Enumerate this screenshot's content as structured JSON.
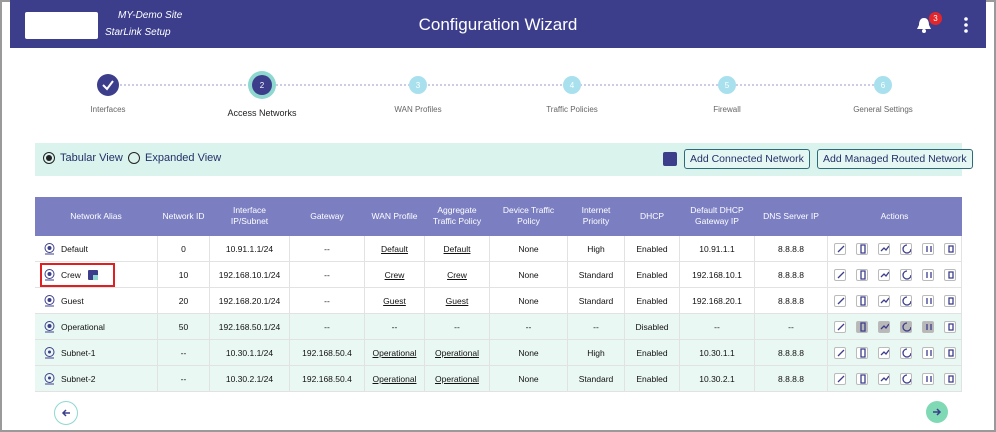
{
  "header": {
    "site_name": "MY-Demo Site",
    "site_subtitle": "StarLink Setup",
    "title": "Configuration Wizard",
    "notification_count": 3
  },
  "steps": [
    {
      "label": "Interfaces",
      "state": "done"
    },
    {
      "number": 2,
      "label": "Access Networks",
      "state": "active"
    },
    {
      "number": 3,
      "label": "WAN Profiles",
      "state": "todo"
    },
    {
      "number": 4,
      "label": "Traffic Policies",
      "state": "todo"
    },
    {
      "number": 5,
      "label": "Firewall",
      "state": "todo"
    },
    {
      "number": 6,
      "label": "General Settings",
      "state": "todo"
    }
  ],
  "toolbar": {
    "views": [
      "Tabular View",
      "Expanded View"
    ],
    "selected_view": 0,
    "buttons": [
      "Add Connected Network",
      "Add Managed Routed Network"
    ]
  },
  "table": {
    "columns": [
      "Network Alias",
      "Network ID",
      "Interface IP/Subnet",
      "Gateway",
      "WAN Profile",
      "Aggregate Traffic Policy",
      "Device Traffic Policy",
      "Internet Priority",
      "DHCP",
      "Default DHCP Gateway IP",
      "DNS Server IP",
      "Actions"
    ],
    "rows": [
      {
        "cells": [
          "Default",
          "0",
          "10.91.1.1/24",
          "--",
          "Default",
          "Default",
          "None",
          "High",
          "Enabled",
          "10.91.1.1",
          "8.8.8.8"
        ],
        "linked": [
          4,
          5
        ]
      },
      {
        "cells": [
          "Crew",
          "10",
          "192.168.10.1/24",
          "--",
          "Crew",
          "Crew",
          "None",
          "Standard",
          "Enabled",
          "192.168.10.1",
          "8.8.8.8"
        ],
        "linked": [
          4,
          5
        ],
        "highlighted": true
      },
      {
        "cells": [
          "Guest",
          "20",
          "192.168.20.1/24",
          "--",
          "Guest",
          "Guest",
          "None",
          "Standard",
          "Enabled",
          "192.168.20.1",
          "8.8.8.8"
        ],
        "linked": [
          4,
          5
        ]
      },
      {
        "cells": [
          "Operational",
          "50",
          "192.168.50.1/24",
          "--",
          "--",
          "--",
          "--",
          "--",
          "Disabled",
          "--",
          "--"
        ],
        "linked": [],
        "shaded": true,
        "disabled": true
      },
      {
        "cells": [
          "Subnet-1",
          "--",
          "10.30.1.1/24",
          "192.168.50.4",
          "Operational",
          "Operational",
          "None",
          "High",
          "Enabled",
          "10.30.1.1",
          "8.8.8.8"
        ],
        "linked": [
          4,
          5
        ],
        "shaded": true
      },
      {
        "cells": [
          "Subnet-2",
          "--",
          "10.30.2.1/24",
          "192.168.50.4",
          "Operational",
          "Operational",
          "None",
          "Standard",
          "Enabled",
          "10.30.2.1",
          "8.8.8.8"
        ],
        "linked": [
          4,
          5
        ],
        "shaded": true
      }
    ]
  }
}
